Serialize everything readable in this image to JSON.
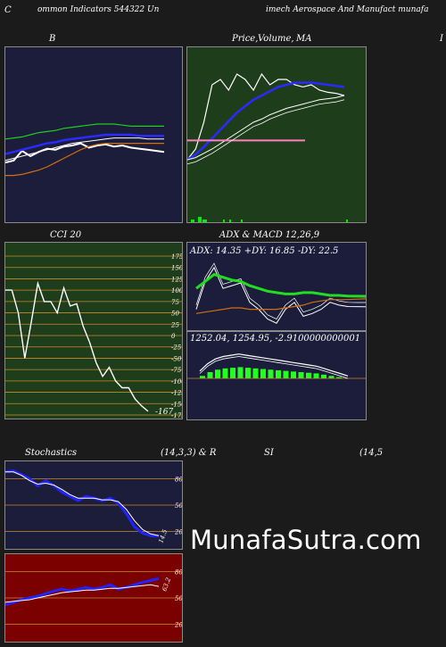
{
  "header": {
    "left": "ommon  Indicators 544322  Un",
    "mid": "imech Aerospace  And Manufact munafa",
    "left_edge": "C",
    "right_edge": "I"
  },
  "panels": {
    "bollinger": {
      "title": "B",
      "side_label": "C"
    },
    "price": {
      "title_a": "Price,",
      "title_b": "Volume,",
      "title_c": "MA"
    },
    "cci": {
      "title": "CCI 20",
      "ticks": [
        "175",
        "150",
        "125",
        "100",
        "75",
        "50",
        "25",
        "0",
        "-25",
        "-50",
        "-75",
        "-100",
        "-125",
        "-150",
        "-175"
      ],
      "last_value": "-167"
    },
    "adx": {
      "title": "ADX  & MACD 12,26,9",
      "readout": "ADX: 14.35  +DY: 16.85 -DY: 22.5"
    },
    "macd": {
      "readout": "1252.04,   1254.95,  -2.9100000000001"
    },
    "stoch": {
      "label_left": "Stochastics",
      "label_right": "(14,3,3) & R",
      "ticks": [
        "80",
        "50",
        "20"
      ],
      "last_value": "14.5"
    },
    "rsi": {
      "label": "SI",
      "label_right": "(14,5",
      "ticks": [
        "80",
        "50",
        "20"
      ],
      "last_value": "63.2"
    }
  },
  "watermark": "MunafaSutra.com",
  "colors": {
    "page_bg": "#1b1b1b",
    "navy_bg": "#1c1c3b",
    "green_bg": "#1e3d1b",
    "red_bg": "#7b0000",
    "grid_orange": "#c88a2c"
  },
  "chart_data": [
    {
      "type": "line",
      "title": "B",
      "x": [
        1,
        2,
        3,
        4,
        5,
        6,
        7,
        8,
        9,
        10,
        11,
        12,
        13,
        14,
        15,
        16,
        17,
        18,
        19,
        20
      ],
      "series": [
        {
          "values": [
            34,
            36,
            45,
            40,
            44,
            47,
            46,
            49,
            50,
            52,
            48,
            50,
            51,
            49,
            50,
            48,
            47,
            46,
            45,
            44
          ]
        },
        {
          "values": [
            56,
            57,
            58,
            60,
            62,
            63,
            64,
            66,
            67,
            68,
            69,
            70,
            70,
            70,
            69,
            68,
            68,
            68,
            68,
            68
          ]
        },
        {
          "values": [
            42,
            44,
            46,
            48,
            50,
            52,
            53,
            55,
            56,
            57,
            58,
            59,
            60,
            60,
            60,
            60,
            59,
            59,
            59,
            59
          ]
        },
        {
          "values": [
            36,
            38,
            40,
            42,
            44,
            46,
            48,
            50,
            52,
            53,
            54,
            55,
            56,
            57,
            57,
            57,
            57,
            56,
            56,
            56
          ]
        },
        {
          "values": [
            22,
            22,
            23,
            25,
            27,
            30,
            34,
            38,
            42,
            46,
            49,
            51,
            52,
            52,
            52,
            52,
            52,
            52,
            52,
            52
          ]
        }
      ]
    },
    {
      "type": "line",
      "title": "Price, Volume, MA",
      "x": [
        1,
        2,
        3,
        4,
        5,
        6,
        7,
        8,
        9,
        10,
        11,
        12,
        13,
        14,
        15,
        16,
        17,
        18,
        19,
        20
      ],
      "series": [
        {
          "values": [
            20,
            30,
            55,
            90,
            95,
            85,
            100,
            95,
            85,
            100,
            90,
            95,
            95,
            90,
            88,
            90,
            85,
            83,
            82,
            80
          ]
        },
        {
          "values": [
            20,
            25,
            32,
            40,
            48,
            56,
            64,
            70,
            76,
            80,
            84,
            88,
            90,
            92,
            92,
            92,
            91,
            90,
            89,
            88
          ]
        },
        {
          "values": [
            20,
            22,
            26,
            30,
            35,
            40,
            45,
            50,
            55,
            58,
            62,
            65,
            68,
            70,
            72,
            74,
            76,
            77,
            78,
            80
          ]
        },
        {
          "values": [
            38,
            38,
            38,
            38,
            38,
            38,
            38,
            38,
            38,
            38,
            38,
            38,
            38,
            38,
            38,
            38,
            38,
            38,
            38,
            38
          ]
        }
      ]
    },
    {
      "type": "line",
      "title": "CCI 20",
      "ylim": [
        -175,
        175
      ],
      "x": [
        1,
        2,
        3,
        4,
        5,
        6,
        7,
        8,
        9,
        10,
        11,
        12,
        13,
        14,
        15,
        16,
        17,
        18,
        19,
        20,
        21,
        22,
        23
      ],
      "series": [
        {
          "values": [
            100,
            100,
            50,
            -50,
            30,
            115,
            75,
            75,
            50,
            105,
            65,
            70,
            20,
            -15,
            -60,
            -90,
            -70,
            -100,
            -115,
            -115,
            -140,
            -155,
            -167
          ]
        }
      ]
    },
    {
      "type": "line",
      "title": "ADX",
      "x": [
        1,
        2,
        3,
        4,
        5,
        6,
        7,
        8,
        9,
        10,
        11,
        12,
        13,
        14,
        15,
        16,
        17,
        18,
        19,
        20
      ],
      "series": [
        {
          "name": "ADX",
          "values": [
            20,
            25,
            30,
            28,
            26,
            25,
            22,
            20,
            18,
            17,
            16,
            16,
            17,
            17,
            16,
            15,
            15,
            14.5,
            14.4,
            14.35
          ]
        },
        {
          "name": "+DY",
          "values": [
            15,
            35,
            45,
            30,
            32,
            34,
            20,
            15,
            8,
            5,
            15,
            20,
            10,
            12,
            15,
            20,
            18,
            17,
            16.9,
            16.85
          ]
        },
        {
          "name": "-DY",
          "values": [
            12,
            13,
            14,
            15,
            16,
            16,
            15,
            15,
            15,
            15,
            16,
            17,
            18,
            20,
            21,
            22,
            22,
            22,
            22.3,
            22.5
          ]
        }
      ]
    },
    {
      "type": "bar",
      "title": "MACD 12,26,9",
      "x": [
        1,
        2,
        3,
        4,
        5,
        6,
        7,
        8,
        9,
        10,
        11,
        12,
        13,
        14,
        15,
        16,
        17,
        18,
        19,
        20
      ],
      "series": [
        {
          "values": [
            0.2,
            0.5,
            0.7,
            0.8,
            0.85,
            0.9,
            0.85,
            0.8,
            0.75,
            0.7,
            0.65,
            0.6,
            0.55,
            0.5,
            0.45,
            0.4,
            0.3,
            0.2,
            0.1,
            0.0
          ]
        }
      ]
    },
    {
      "type": "line",
      "title": "Stochastics",
      "ylim": [
        0,
        100
      ],
      "x": [
        1,
        2,
        3,
        4,
        5,
        6,
        7,
        8,
        9,
        10,
        11,
        12,
        13,
        14,
        15,
        16,
        17,
        18,
        19,
        20
      ],
      "series": [
        {
          "values": [
            88,
            89,
            85,
            80,
            72,
            78,
            72,
            65,
            60,
            55,
            60,
            58,
            55,
            58,
            52,
            40,
            25,
            18,
            15,
            14.5
          ]
        },
        {
          "values": [
            88,
            88,
            84,
            78,
            74,
            75,
            73,
            68,
            62,
            58,
            58,
            58,
            56,
            56,
            54,
            45,
            32,
            22,
            17,
            15
          ]
        }
      ]
    },
    {
      "type": "line",
      "title": "RSI",
      "ylim": [
        0,
        100
      ],
      "x": [
        1,
        2,
        3,
        4,
        5,
        6,
        7,
        8,
        9,
        10,
        11,
        12,
        13,
        14,
        15,
        16,
        17,
        18,
        19,
        20
      ],
      "series": [
        {
          "values": [
            42,
            45,
            48,
            50,
            52,
            55,
            58,
            60,
            58,
            60,
            62,
            60,
            62,
            65,
            60,
            62,
            65,
            68,
            70,
            72
          ]
        },
        {
          "values": [
            45,
            46,
            47,
            48,
            50,
            52,
            54,
            56,
            57,
            58,
            59,
            59,
            60,
            61,
            61,
            62,
            63,
            64,
            65,
            63.2
          ]
        }
      ]
    }
  ]
}
